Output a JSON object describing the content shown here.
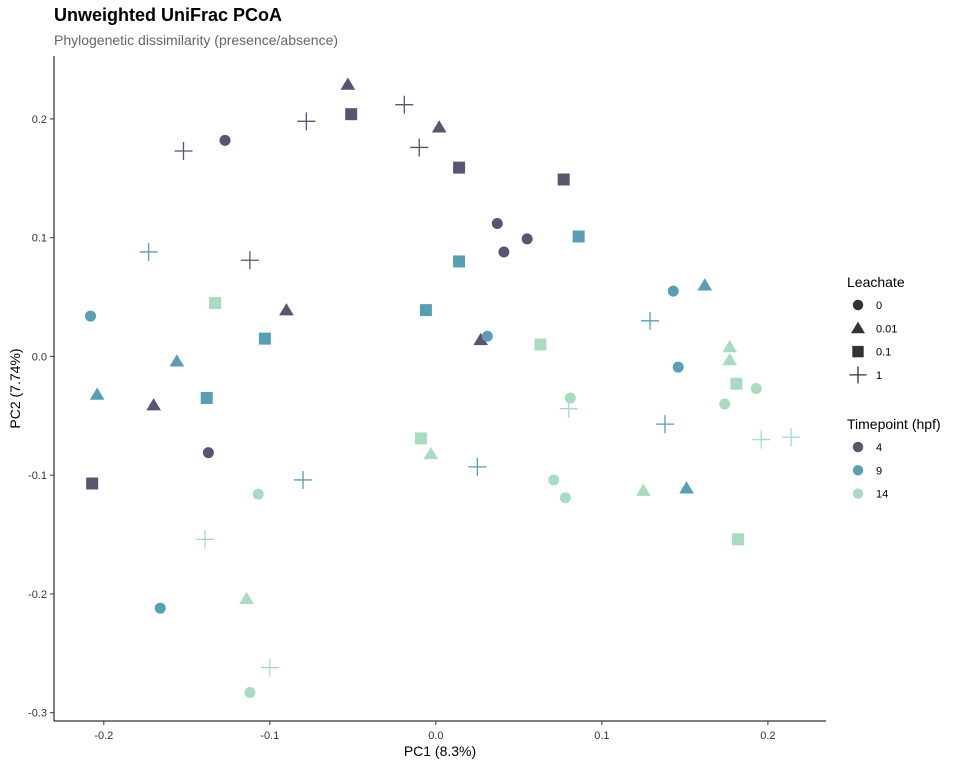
{
  "chart_data": {
    "type": "scatter",
    "title": "Unweighted UniFrac PCoA",
    "subtitle": "Phylogenetic dissimilarity (presence/absence)",
    "xlabel": "PC1 (8.3%)",
    "ylabel": "PC2 (7.74%)",
    "xlim": [
      -0.23,
      0.235
    ],
    "ylim": [
      -0.307,
      0.253
    ],
    "xticks": [
      -0.2,
      -0.1,
      0.0,
      0.1,
      0.2
    ],
    "yticks": [
      -0.3,
      -0.2,
      -0.1,
      0.0,
      0.1,
      0.2
    ],
    "xtick_labels": [
      "-0.2",
      "-0.1",
      "0.0",
      "0.1",
      "0.2"
    ],
    "ytick_labels": [
      "-0.3",
      "-0.2",
      "-0.1",
      "0.0",
      "0.1",
      "0.2"
    ],
    "grid": false,
    "legend_placement": "right",
    "legends": [
      {
        "title": "Leachate",
        "entries": [
          {
            "label": "0",
            "shape": "circle"
          },
          {
            "label": "0.01",
            "shape": "triangle"
          },
          {
            "label": "0.1",
            "shape": "square"
          },
          {
            "label": "1",
            "shape": "plus"
          }
        ]
      },
      {
        "title": "Timepoint (hpf)",
        "entries": [
          {
            "label": "4",
            "color": "#5b5370"
          },
          {
            "label": "9",
            "color": "#569fb5"
          },
          {
            "label": "14",
            "color": "#a8dcc0"
          }
        ]
      }
    ],
    "shape_by_leachate": {
      "0": "circle",
      "0.01": "triangle",
      "0.1": "square",
      "1": "plus"
    },
    "color_by_timepoint": {
      "4": "#5b5370",
      "9": "#569fb5",
      "14": "#a8dcc0"
    },
    "points": [
      {
        "x": -0.127,
        "y": 0.182,
        "leachate": "0",
        "timepoint": "4"
      },
      {
        "x": 0.037,
        "y": 0.112,
        "leachate": "0",
        "timepoint": "4"
      },
      {
        "x": 0.055,
        "y": 0.099,
        "leachate": "0",
        "timepoint": "4"
      },
      {
        "x": 0.041,
        "y": 0.088,
        "leachate": "0",
        "timepoint": "4"
      },
      {
        "x": -0.137,
        "y": -0.081,
        "leachate": "0",
        "timepoint": "4"
      },
      {
        "x": -0.053,
        "y": 0.229,
        "leachate": "0.01",
        "timepoint": "4"
      },
      {
        "x": 0.002,
        "y": 0.193,
        "leachate": "0.01",
        "timepoint": "4"
      },
      {
        "x": -0.09,
        "y": 0.039,
        "leachate": "0.01",
        "timepoint": "4"
      },
      {
        "x": 0.027,
        "y": 0.014,
        "leachate": "0.01",
        "timepoint": "4"
      },
      {
        "x": -0.17,
        "y": -0.041,
        "leachate": "0.01",
        "timepoint": "4"
      },
      {
        "x": -0.051,
        "y": 0.204,
        "leachate": "0.1",
        "timepoint": "4"
      },
      {
        "x": 0.014,
        "y": 0.159,
        "leachate": "0.1",
        "timepoint": "4"
      },
      {
        "x": 0.077,
        "y": 0.149,
        "leachate": "0.1",
        "timepoint": "4"
      },
      {
        "x": -0.207,
        "y": -0.107,
        "leachate": "0.1",
        "timepoint": "4"
      },
      {
        "x": -0.019,
        "y": 0.212,
        "leachate": "1",
        "timepoint": "4"
      },
      {
        "x": -0.078,
        "y": 0.198,
        "leachate": "1",
        "timepoint": "4"
      },
      {
        "x": -0.152,
        "y": 0.173,
        "leachate": "1",
        "timepoint": "4"
      },
      {
        "x": -0.01,
        "y": 0.176,
        "leachate": "1",
        "timepoint": "4"
      },
      {
        "x": -0.112,
        "y": 0.081,
        "leachate": "1",
        "timepoint": "4"
      },
      {
        "x": -0.208,
        "y": 0.034,
        "leachate": "0",
        "timepoint": "9"
      },
      {
        "x": 0.143,
        "y": 0.055,
        "leachate": "0",
        "timepoint": "9"
      },
      {
        "x": 0.031,
        "y": 0.017,
        "leachate": "0",
        "timepoint": "9"
      },
      {
        "x": 0.146,
        "y": -0.009,
        "leachate": "0",
        "timepoint": "9"
      },
      {
        "x": -0.166,
        "y": -0.212,
        "leachate": "0",
        "timepoint": "9"
      },
      {
        "x": 0.162,
        "y": 0.06,
        "leachate": "0.01",
        "timepoint": "9"
      },
      {
        "x": -0.156,
        "y": -0.004,
        "leachate": "0.01",
        "timepoint": "9"
      },
      {
        "x": -0.204,
        "y": -0.032,
        "leachate": "0.01",
        "timepoint": "9"
      },
      {
        "x": 0.151,
        "y": -0.111,
        "leachate": "0.01",
        "timepoint": "9"
      },
      {
        "x": 0.086,
        "y": 0.101,
        "leachate": "0.1",
        "timepoint": "9"
      },
      {
        "x": 0.014,
        "y": 0.08,
        "leachate": "0.1",
        "timepoint": "9"
      },
      {
        "x": -0.006,
        "y": 0.039,
        "leachate": "0.1",
        "timepoint": "9"
      },
      {
        "x": -0.103,
        "y": 0.015,
        "leachate": "0.1",
        "timepoint": "9"
      },
      {
        "x": -0.138,
        "y": -0.035,
        "leachate": "0.1",
        "timepoint": "9"
      },
      {
        "x": -0.173,
        "y": 0.088,
        "leachate": "1",
        "timepoint": "9"
      },
      {
        "x": 0.129,
        "y": 0.03,
        "leachate": "1",
        "timepoint": "9"
      },
      {
        "x": 0.138,
        "y": -0.057,
        "leachate": "1",
        "timepoint": "9"
      },
      {
        "x": 0.025,
        "y": -0.093,
        "leachate": "1",
        "timepoint": "9"
      },
      {
        "x": -0.08,
        "y": -0.104,
        "leachate": "1",
        "timepoint": "9"
      },
      {
        "x": 0.081,
        "y": -0.035,
        "leachate": "0",
        "timepoint": "14"
      },
      {
        "x": 0.193,
        "y": -0.027,
        "leachate": "0",
        "timepoint": "14"
      },
      {
        "x": 0.174,
        "y": -0.04,
        "leachate": "0",
        "timepoint": "14"
      },
      {
        "x": 0.071,
        "y": -0.104,
        "leachate": "0",
        "timepoint": "14"
      },
      {
        "x": 0.078,
        "y": -0.119,
        "leachate": "0",
        "timepoint": "14"
      },
      {
        "x": -0.107,
        "y": -0.116,
        "leachate": "0",
        "timepoint": "14"
      },
      {
        "x": -0.112,
        "y": -0.283,
        "leachate": "0",
        "timepoint": "14"
      },
      {
        "x": 0.177,
        "y": 0.008,
        "leachate": "0.01",
        "timepoint": "14"
      },
      {
        "x": 0.177,
        "y": -0.003,
        "leachate": "0.01",
        "timepoint": "14"
      },
      {
        "x": -0.003,
        "y": -0.082,
        "leachate": "0.01",
        "timepoint": "14"
      },
      {
        "x": 0.125,
        "y": -0.113,
        "leachate": "0.01",
        "timepoint": "14"
      },
      {
        "x": -0.114,
        "y": -0.204,
        "leachate": "0.01",
        "timepoint": "14"
      },
      {
        "x": -0.133,
        "y": 0.045,
        "leachate": "0.1",
        "timepoint": "14"
      },
      {
        "x": 0.063,
        "y": 0.01,
        "leachate": "0.1",
        "timepoint": "14"
      },
      {
        "x": 0.181,
        "y": -0.023,
        "leachate": "0.1",
        "timepoint": "14"
      },
      {
        "x": -0.009,
        "y": -0.069,
        "leachate": "0.1",
        "timepoint": "14"
      },
      {
        "x": 0.182,
        "y": -0.154,
        "leachate": "0.1",
        "timepoint": "14"
      },
      {
        "x": 0.08,
        "y": -0.044,
        "leachate": "1",
        "timepoint": "14"
      },
      {
        "x": 0.196,
        "y": -0.07,
        "leachate": "1",
        "timepoint": "14"
      },
      {
        "x": 0.214,
        "y": -0.068,
        "leachate": "1",
        "timepoint": "14"
      },
      {
        "x": -0.139,
        "y": -0.154,
        "leachate": "1",
        "timepoint": "14"
      },
      {
        "x": -0.1,
        "y": -0.262,
        "leachate": "1",
        "timepoint": "14"
      }
    ]
  }
}
